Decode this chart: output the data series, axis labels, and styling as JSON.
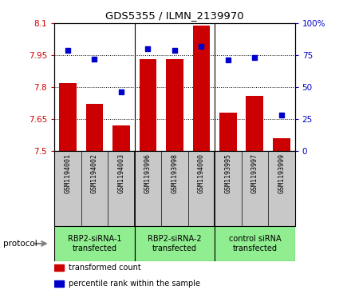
{
  "title": "GDS5355 / ILMN_2139970",
  "samples": [
    "GSM1194001",
    "GSM1194002",
    "GSM1194003",
    "GSM1193996",
    "GSM1193998",
    "GSM1194000",
    "GSM1193995",
    "GSM1193997",
    "GSM1193999"
  ],
  "bar_values": [
    7.82,
    7.72,
    7.62,
    7.93,
    7.93,
    8.09,
    7.68,
    7.76,
    7.56
  ],
  "percentile_values": [
    79,
    72,
    46,
    80,
    79,
    82,
    71,
    73,
    28
  ],
  "ylim_left": [
    7.5,
    8.1
  ],
  "ylim_right": [
    0,
    100
  ],
  "yticks_left": [
    7.5,
    7.65,
    7.8,
    7.95,
    8.1
  ],
  "ytick_labels_left": [
    "7.5",
    "7.65",
    "7.8",
    "7.95",
    "8.1"
  ],
  "yticks_right": [
    0,
    25,
    50,
    75,
    100
  ],
  "ytick_labels_right": [
    "0",
    "25",
    "50",
    "75",
    "100%"
  ],
  "hlines": [
    7.65,
    7.8,
    7.95
  ],
  "bar_color": "#cc0000",
  "dot_color": "#0000cc",
  "group_dividers": [
    2.5,
    5.5
  ],
  "group_labels": [
    "RBP2-siRNA-1\ntransfected",
    "RBP2-siRNA-2\ntransfected",
    "control siRNA\ntransfected"
  ],
  "group_color": "#90ee90",
  "sample_box_color": "#c8c8c8",
  "protocol_label": "protocol",
  "legend_items": [
    {
      "color": "#cc0000",
      "label": "transformed count"
    },
    {
      "color": "#0000cc",
      "label": "percentile rank within the sample"
    }
  ]
}
